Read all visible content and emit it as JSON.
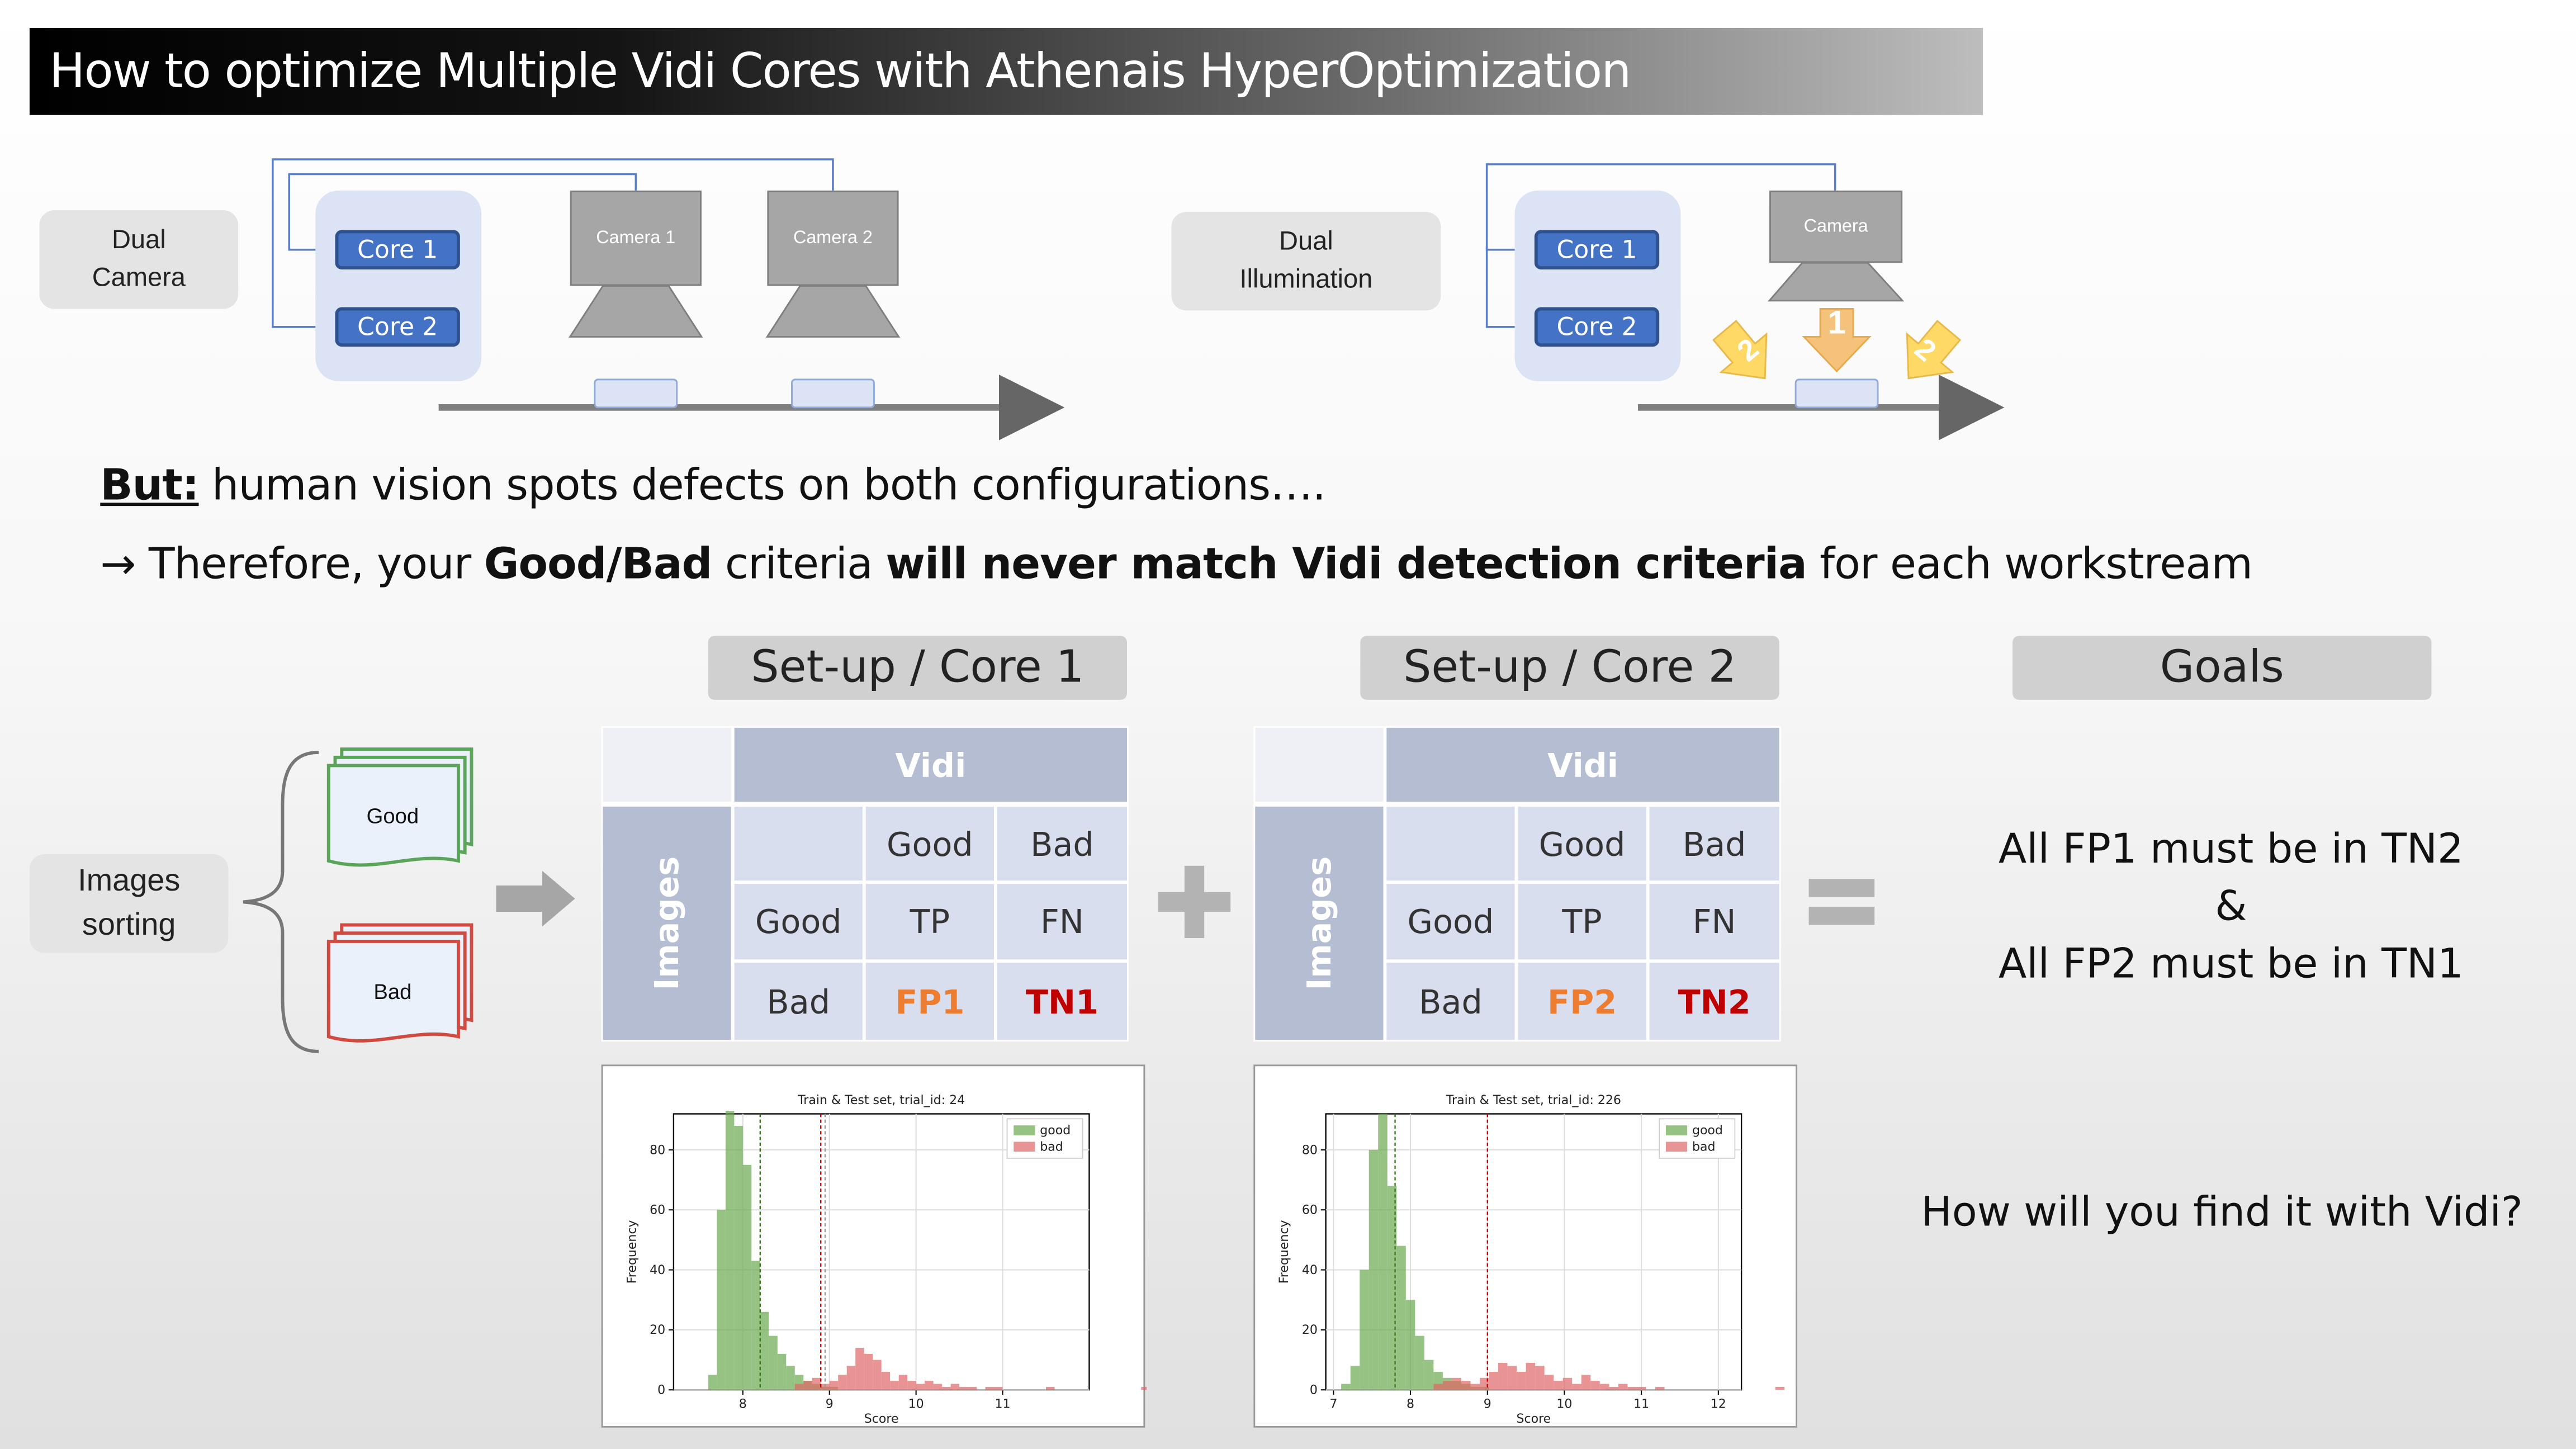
{
  "title": "How to optimize Multiple Vidi Cores with Athenais HyperOptimization",
  "dual_camera": {
    "label": "Dual\nCamera",
    "core1": "Core 1",
    "core2": "Core 2",
    "camera1": "Camera 1",
    "camera2": "Camera 2"
  },
  "dual_illumination": {
    "label": "Dual\nIllumination",
    "core1": "Core 1",
    "core2": "Core 2",
    "camera": "Camera",
    "light_center": "1",
    "light_side": "2"
  },
  "statement": {
    "but_label": "But:",
    "but_text": " human vision spots defects on both configurations….",
    "arrow": "→",
    "line2_a": " Therefore, your ",
    "line2_b": "Good/Bad",
    "line2_c": " criteria ",
    "line2_d": "will never match Vidi detection criteria",
    "line2_e": " for each workstream"
  },
  "sorting": {
    "label": "Images\nsorting",
    "good": "Good",
    "bad": "Bad"
  },
  "setup1": {
    "header": "Set-up / Core 1",
    "matrix": {
      "col_group": "Vidi",
      "row_group": "Images",
      "col_good": "Good",
      "col_bad": "Bad",
      "row_good": "Good",
      "row_bad": "Bad",
      "tp": "TP",
      "fn": "FN",
      "fp": "FP1",
      "tn": "TN1"
    },
    "plot": {
      "title": "Train & Test set, trial_id: 24",
      "xlabel": "Score",
      "ylabel": "Frequency",
      "legend_good": "good",
      "legend_bad": "bad",
      "xticks": [
        "8",
        "9",
        "10",
        "11"
      ],
      "yticks": [
        "0",
        "20",
        "40",
        "60",
        "80"
      ]
    }
  },
  "setup2": {
    "header": "Set-up / Core 2",
    "matrix": {
      "col_group": "Vidi",
      "row_group": "Images",
      "col_good": "Good",
      "col_bad": "Bad",
      "row_good": "Good",
      "row_bad": "Bad",
      "tp": "TP",
      "fn": "FN",
      "fp": "FP2",
      "tn": "TN2"
    },
    "plot": {
      "title": "Train & Test set, trial_id: 226",
      "xlabel": "Score",
      "ylabel": "Frequency",
      "legend_good": "good",
      "legend_bad": "bad",
      "xticks": [
        "7",
        "8",
        "9",
        "10",
        "11",
        "12"
      ],
      "yticks": [
        "0",
        "20",
        "40",
        "60",
        "80"
      ]
    }
  },
  "goals": {
    "header": "Goals",
    "line1": "All FP1 must be in TN2",
    "line2": "&",
    "line3": "All FP2 must be in TN1",
    "question": "How will you find  it with Vidi?"
  },
  "colors": {
    "core_pill": "#4472c4",
    "fp": "#ed7d31",
    "tn": "#c00000",
    "good_hist": "#6aa84f",
    "bad_hist": "#e06666",
    "matrix_header": "#b4bdd1",
    "matrix_cell": "#d8deed"
  },
  "chart_data": [
    {
      "type": "bar",
      "title": "Train & Test set, trial_id: 24",
      "xlabel": "Score",
      "ylabel": "Frequency",
      "xlim": [
        7.2,
        12
      ],
      "ylim": [
        0,
        92
      ],
      "legend": "top-right",
      "grid": true,
      "bin_width": 0.1,
      "thresholds": [
        8.2,
        8.9,
        8.95
      ],
      "series": [
        {
          "name": "good",
          "color": "#6aa84f",
          "bin_start": 7.6,
          "values": [
            5,
            60,
            93,
            88,
            75,
            43,
            26,
            18,
            12,
            8,
            5,
            3,
            2,
            1,
            1
          ]
        },
        {
          "name": "bad",
          "color": "#e06666",
          "bin_start": 8.6,
          "values": [
            2,
            3,
            4,
            2,
            3,
            5,
            8,
            14,
            12,
            10,
            6,
            3,
            5,
            3,
            2,
            3,
            2,
            1,
            2,
            1,
            1,
            0,
            1,
            1,
            0,
            0,
            0,
            0,
            0,
            1,
            0,
            0,
            0,
            0,
            0,
            0,
            0,
            0,
            0,
            0,
            1
          ]
        }
      ]
    },
    {
      "type": "bar",
      "title": "Train & Test set, trial_id: 226",
      "xlabel": "Score",
      "ylabel": "Frequency",
      "xlim": [
        6.9,
        12.3
      ],
      "ylim": [
        0,
        92
      ],
      "legend": "top-right",
      "grid": true,
      "bin_width": 0.12,
      "thresholds": [
        7.8,
        9.0
      ],
      "series": [
        {
          "name": "good",
          "color": "#6aa84f",
          "bin_start": 7.1,
          "values": [
            2,
            8,
            40,
            80,
            92,
            68,
            48,
            30,
            18,
            10,
            6,
            4,
            3,
            2,
            1,
            1
          ]
        },
        {
          "name": "bad",
          "color": "#e06666",
          "bin_start": 8.3,
          "values": [
            2,
            3,
            4,
            3,
            2,
            4,
            6,
            9,
            8,
            6,
            9,
            8,
            5,
            3,
            4,
            2,
            5,
            3,
            2,
            1,
            2,
            1,
            1,
            0,
            1,
            0,
            0,
            0,
            0,
            0,
            0,
            0,
            0,
            0,
            0,
            0,
            0,
            1
          ]
        }
      ]
    }
  ]
}
